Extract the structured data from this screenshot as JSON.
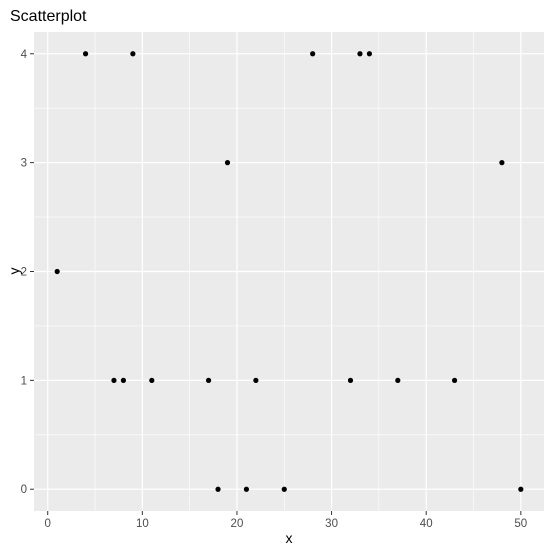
{
  "chart_data": {
    "type": "scatter",
    "title": "Scatterplot",
    "xlabel": "x",
    "ylabel": "y",
    "xlim": [
      -1.45,
      52.45
    ],
    "ylim": [
      -0.2,
      4.2
    ],
    "x_ticks": [
      0,
      10,
      20,
      30,
      40,
      50
    ],
    "y_ticks": [
      0,
      1,
      2,
      3,
      4
    ],
    "grid": true,
    "legend": "none",
    "colors": {
      "panel": "#ebebeb",
      "grid_major": "#ffffff",
      "point": "#000000",
      "tick_text": "#4d4d4d",
      "tick_mark": "#333333"
    },
    "points": [
      {
        "x": 1,
        "y": 2
      },
      {
        "x": 4,
        "y": 4
      },
      {
        "x": 7,
        "y": 1
      },
      {
        "x": 8,
        "y": 1
      },
      {
        "x": 9,
        "y": 4
      },
      {
        "x": 11,
        "y": 1
      },
      {
        "x": 17,
        "y": 1
      },
      {
        "x": 18,
        "y": 0
      },
      {
        "x": 19,
        "y": 3
      },
      {
        "x": 21,
        "y": 0
      },
      {
        "x": 22,
        "y": 1
      },
      {
        "x": 25,
        "y": 0
      },
      {
        "x": 28,
        "y": 4
      },
      {
        "x": 32,
        "y": 1
      },
      {
        "x": 33,
        "y": 4
      },
      {
        "x": 34,
        "y": 4
      },
      {
        "x": 37,
        "y": 1
      },
      {
        "x": 43,
        "y": 1
      },
      {
        "x": 48,
        "y": 3
      },
      {
        "x": 50,
        "y": 0
      }
    ]
  }
}
